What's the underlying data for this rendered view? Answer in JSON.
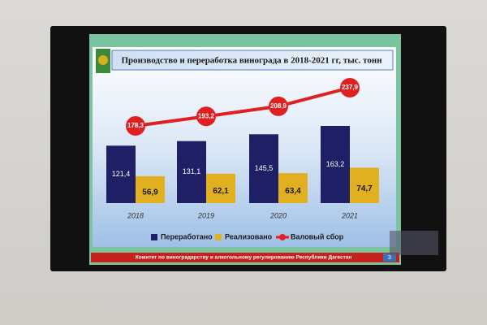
{
  "chart_data": {
    "type": "bar",
    "title": "Производство и переработка винограда в 2018-2021 гг, тыс. тонн",
    "categories": [
      "2018",
      "2019",
      "2020",
      "2021"
    ],
    "series": [
      {
        "name": "Переработано",
        "color": "#1f1f66",
        "values": [
          121.4,
          131.1,
          145.5,
          163.2
        ],
        "value_labels": [
          "121,4",
          "131,1",
          "145,5",
          "163,2"
        ]
      },
      {
        "name": "Реализовано",
        "color": "#e0b020",
        "values": [
          56.9,
          62.1,
          63.4,
          74.7
        ],
        "value_labels": [
          "56,9",
          "62,1",
          "63,4",
          "74,7"
        ]
      },
      {
        "name": "Валовый сбор",
        "color": "#e02020",
        "type": "line",
        "values": [
          178.3,
          193.2,
          208.9,
          237.9
        ],
        "value_labels": [
          "178,3",
          "193,2",
          "208,9",
          "237,9"
        ]
      }
    ],
    "legend": "bottom"
  },
  "footer": "Комитет по виноградарству и алкогольному регулированию Республики Дагестан",
  "slide_number": "3"
}
